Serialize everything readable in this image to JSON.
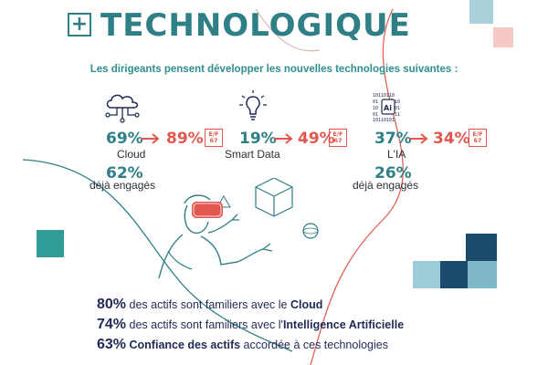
{
  "header": {
    "title": "TECHNOLOGIQUE",
    "icon": "plus-icon"
  },
  "subtitle": "Les dirigeants pensent développer les nouvelles technologies suivantes :",
  "colors": {
    "teal": "#2f7f86",
    "red": "#e0584f",
    "navy": "#1f2a55",
    "light_teal": "#7fb8c8",
    "pink": "#f4c9c6"
  },
  "tech": [
    {
      "name": "Cloud",
      "icon": "cloud-network-icon",
      "from": "69%",
      "to": "89%",
      "badge": "E/F 67",
      "engaged_pct": "62%",
      "engaged_label": "déjà engagés"
    },
    {
      "name": "Smart Data",
      "icon": "lightbulb-icon",
      "from": "19%",
      "to": "49%",
      "badge": "E/F 67"
    },
    {
      "name": "L'IA",
      "icon": "ai-chip-icon",
      "from": "37%",
      "to": "34%",
      "badge": "E/F 67",
      "engaged_pct": "26%",
      "engaged_label": "déjà engagés"
    }
  ],
  "facts": [
    {
      "num": "80%",
      "text": " des actifs sont familiers avec le ",
      "bold": "Cloud"
    },
    {
      "num": "74%",
      "text": " des actifs sont familiers avec l'",
      "bold": "Intelligence Artificielle"
    },
    {
      "num": "63%",
      "bold_first": " Confiance des actifs",
      "text": " accordée à ces technologies"
    }
  ]
}
